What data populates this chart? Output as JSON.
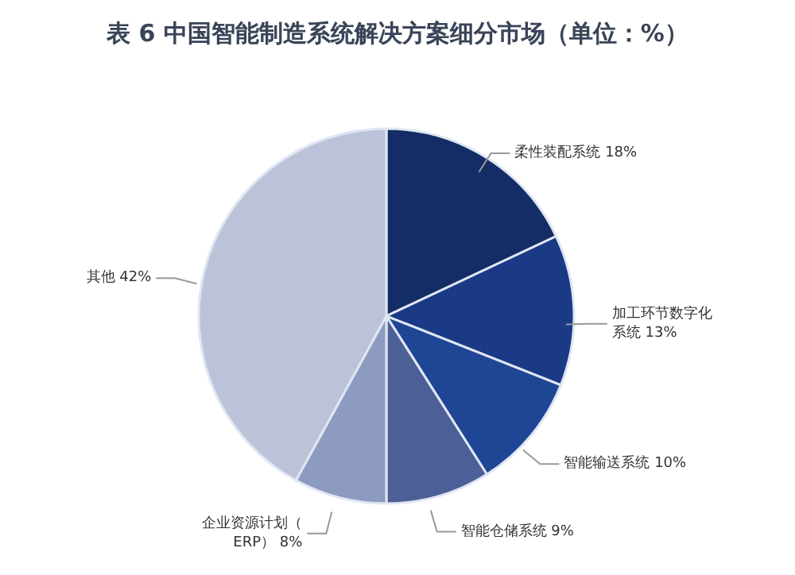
{
  "chart_data": {
    "type": "pie",
    "title": "表 6 中国智能制造系统解决方案细分市场（单位：%）",
    "categories": [
      "柔性装配系统",
      "加工环节数字化系统",
      "智能输送系统",
      "智能仓储系统",
      "企业资源计划（ERP）",
      "其他"
    ],
    "values": [
      18,
      13,
      10,
      9,
      8,
      42
    ],
    "value_labels": [
      "18%",
      "13%",
      "10%",
      "9%",
      "8%",
      "42%"
    ],
    "colors": [
      "#142d66",
      "#1a3a86",
      "#1f4595",
      "#4c5f97",
      "#8d9bc0",
      "#bcc3d8"
    ],
    "legend": false
  }
}
